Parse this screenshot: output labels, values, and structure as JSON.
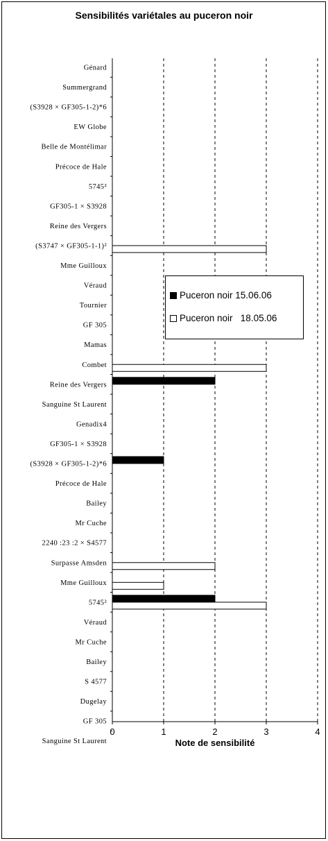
{
  "chart_data": {
    "type": "bar",
    "orientation": "horizontal",
    "title": "Sensibilités variétales au puceron noir",
    "xlabel": "Note de sensibilité",
    "ylabel": "",
    "xlim": [
      0,
      4
    ],
    "xticks": [
      0,
      1,
      2,
      3,
      4
    ],
    "grid": "vertical dashed",
    "legend_position": "center-right",
    "categories": [
      "Génard",
      "Summergrand",
      "(S3928 × GF305-1-2)*6",
      "EW Globe",
      "Belle de Montélimar",
      "Précoce de Hale",
      "5745²",
      "GF305-1 × S3928",
      "Reine des Vergers",
      "(S3747 × GF305-1-1)²",
      "Mme Guilloux",
      "Véraud",
      "Tournier",
      "GF 305",
      "Mamas",
      "Combet",
      "Reine des Vergers",
      "Sanguine St Laurent",
      "Genadix4",
      "GF305-1 × S3928",
      "(S3928 × GF305-1-2)*6",
      "Précoce de Hale",
      "Bailey",
      "Mr Cuche",
      "2240 :23 :2 × S4577",
      "Surpasse Amsden",
      "Mme Guilloux",
      "5745²",
      "Véraud",
      "Mr Cuche",
      "Bailey",
      "S 4577",
      "Dugelay",
      "GF 305",
      "Sanguine St Laurent"
    ],
    "series": [
      {
        "name": "Puceron noir 15.06.06",
        "color": "#000000",
        "values": [
          0,
          0,
          0,
          0,
          0,
          0,
          0,
          0,
          0,
          0,
          0,
          0,
          0,
          0,
          0,
          0,
          2,
          0,
          0,
          0,
          1,
          0,
          0,
          0,
          0,
          0,
          0,
          2,
          0,
          0,
          0,
          0,
          0,
          0,
          0
        ]
      },
      {
        "name": "Puceron noir   18.05.06",
        "color": "#ffffff",
        "values": [
          0,
          0,
          0,
          0,
          0,
          0,
          0,
          0,
          0,
          3,
          0,
          0,
          0,
          0,
          0,
          3,
          0,
          0,
          0,
          0,
          0,
          0,
          0,
          0,
          0,
          2,
          1,
          3,
          0,
          0,
          0,
          0,
          0,
          0,
          0
        ]
      }
    ]
  }
}
